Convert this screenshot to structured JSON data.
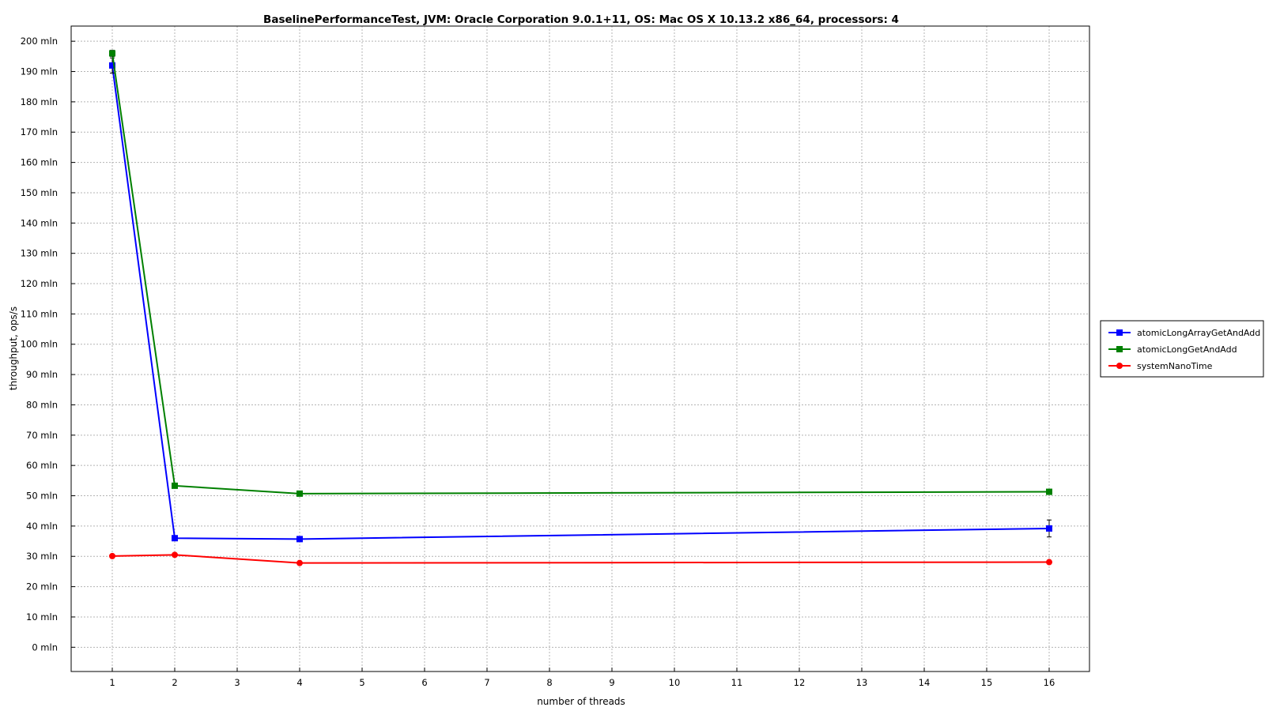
{
  "chart_data": {
    "type": "line",
    "title": "BaselinePerformanceTest, JVM: Oracle Corporation 9.0.1+11, OS: Mac OS X 10.13.2 x86_64, processors: 4",
    "xlabel": "number of threads",
    "ylabel": "throughput, ops/s",
    "x_categories": [
      "1",
      "2",
      "3",
      "4",
      "5",
      "6",
      "7",
      "8",
      "9",
      "10",
      "11",
      "12",
      "13",
      "14",
      "15",
      "16"
    ],
    "ylim": [
      -8,
      205
    ],
    "y_ticks": [
      0,
      10,
      20,
      30,
      40,
      50,
      60,
      70,
      80,
      90,
      100,
      110,
      120,
      130,
      140,
      150,
      160,
      170,
      180,
      190,
      200
    ],
    "y_tick_labels": [
      "0 mln",
      "10 mln",
      "20 mln",
      "30 mln",
      "40 mln",
      "50 mln",
      "60 mln",
      "70 mln",
      "80 mln",
      "90 mln",
      "100 mln",
      "110 mln",
      "120 mln",
      "130 mln",
      "140 mln",
      "150 mln",
      "160 mln",
      "170 mln",
      "180 mln",
      "190 mln",
      "200 mln"
    ],
    "grid": true,
    "legend_position": "right",
    "series": [
      {
        "name": "atomicLongArrayGetAndAdd",
        "color": "#0000ff",
        "marker": "square",
        "x": [
          1,
          2,
          4,
          16
        ],
        "y": [
          192,
          36,
          35.7,
          39.2
        ],
        "error": [
          2.5,
          0.6,
          0.6,
          2.8
        ]
      },
      {
        "name": "atomicLongGetAndAdd",
        "color": "#008000",
        "marker": "square",
        "x": [
          1,
          2,
          4,
          16
        ],
        "y": [
          196,
          53.3,
          50.7,
          51.3
        ],
        "error": [
          1.0,
          0.5,
          0.5,
          0.5
        ]
      },
      {
        "name": "systemNanoTime",
        "color": "#ff0000",
        "marker": "circle",
        "x": [
          1,
          2,
          4,
          16
        ],
        "y": [
          30.1,
          30.5,
          27.8,
          28.1
        ],
        "error": [
          0.3,
          0.3,
          0.3,
          0.3
        ]
      }
    ]
  }
}
